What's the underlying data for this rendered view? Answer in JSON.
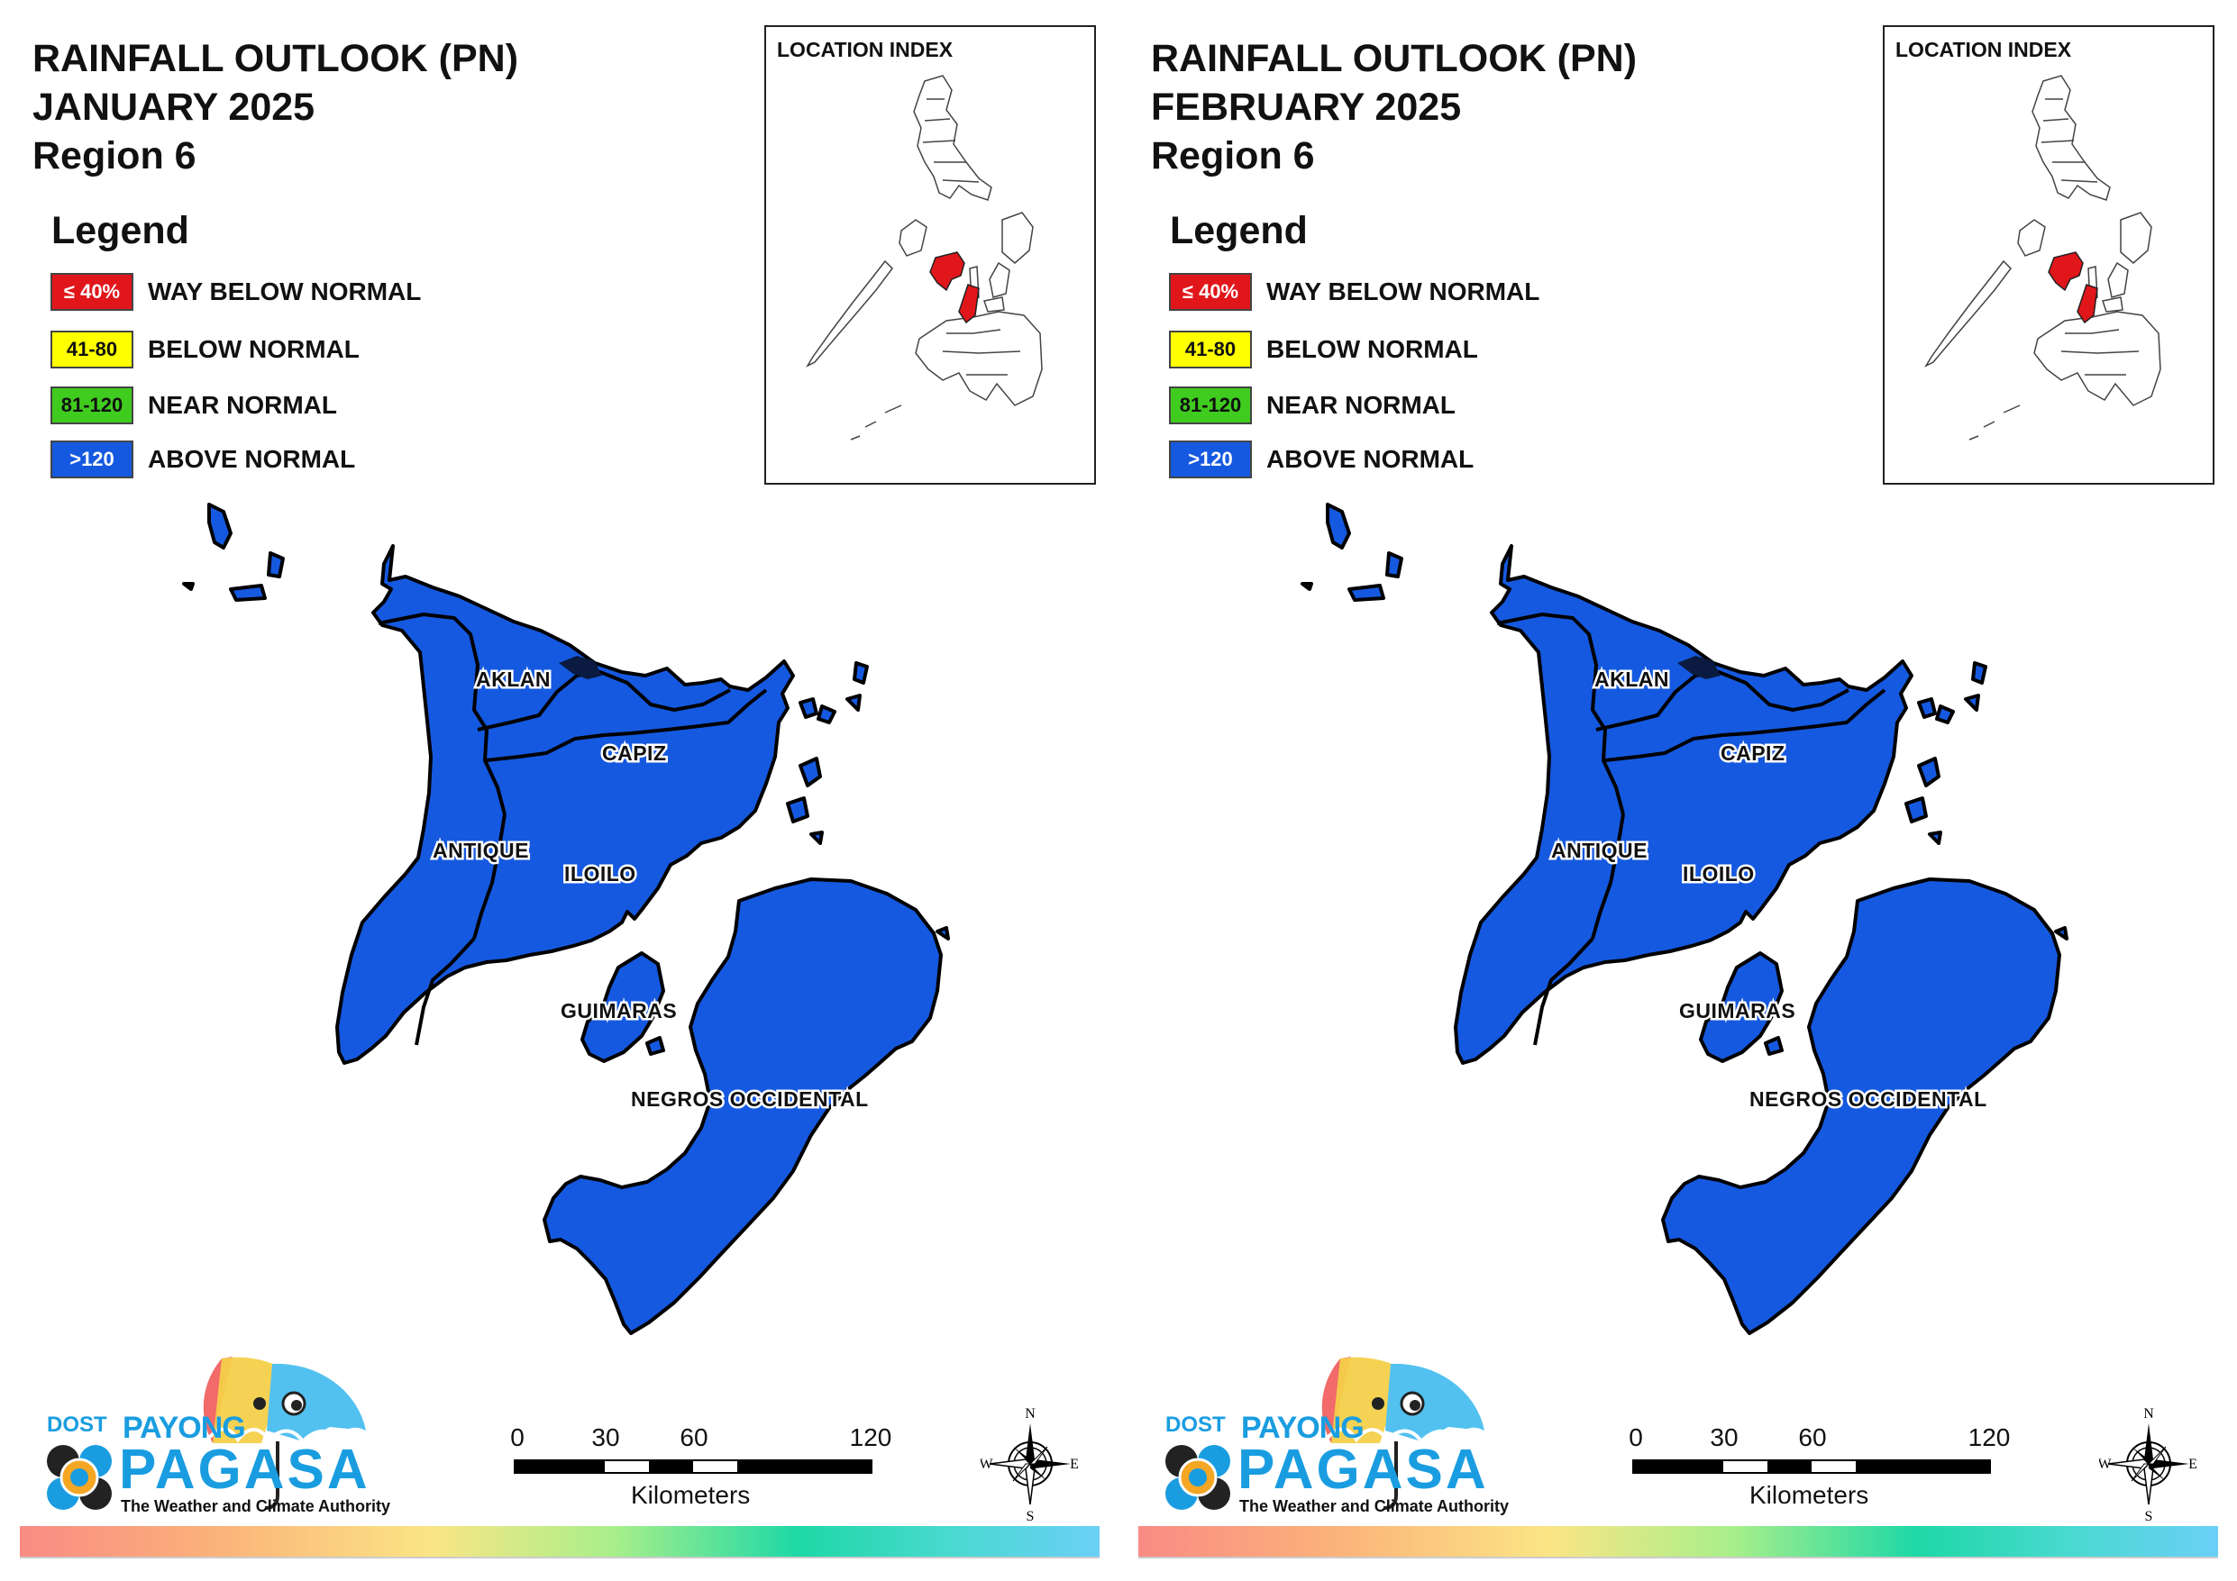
{
  "panels": [
    {
      "title": {
        "line1": "RAINFALL OUTLOOK (PN)",
        "line2": "JANUARY 2025",
        "line3": "Region 6"
      },
      "legend": {
        "heading": "Legend",
        "items": [
          {
            "swatch": "≤ 40%",
            "label": "WAY BELOW NORMAL",
            "color": "#e0161b"
          },
          {
            "swatch": "41-80",
            "label": "BELOW NORMAL",
            "color": "#ffff00"
          },
          {
            "swatch": "81-120",
            "label": "NEAR NORMAL",
            "color": "#3fcc1f"
          },
          {
            "swatch": ">120",
            "label": "ABOVE NORMAL",
            "color": "#1559e0"
          }
        ]
      },
      "location_index": {
        "title": "LOCATION INDEX"
      },
      "provinces": [
        {
          "name": "AKLAN",
          "category": "ABOVE NORMAL"
        },
        {
          "name": "CAPIZ",
          "category": "ABOVE NORMAL"
        },
        {
          "name": "ANTIQUE",
          "category": "ABOVE NORMAL"
        },
        {
          "name": "ILOILO",
          "category": "ABOVE NORMAL"
        },
        {
          "name": "GUIMARAS",
          "category": "ABOVE NORMAL"
        },
        {
          "name": "NEGROS OCCIDENTAL",
          "category": "ABOVE NORMAL"
        }
      ],
      "scale": {
        "ticks": [
          "0",
          "30",
          "60",
          "120"
        ],
        "unit": "Kilometers"
      },
      "compass": {
        "n": "N",
        "s": "S",
        "e": "E",
        "w": "W"
      },
      "logo": {
        "dost": "DOST",
        "payong": "PAYONG",
        "pagasa": "PAGASA",
        "tagline": "The Weather and Climate Authority"
      }
    },
    {
      "title": {
        "line1": "RAINFALL OUTLOOK (PN)",
        "line2": "FEBRUARY 2025",
        "line3": "Region 6"
      },
      "legend": {
        "heading": "Legend",
        "items": [
          {
            "swatch": "≤ 40%",
            "label": "WAY BELOW NORMAL",
            "color": "#e0161b"
          },
          {
            "swatch": "41-80",
            "label": "BELOW NORMAL",
            "color": "#ffff00"
          },
          {
            "swatch": "81-120",
            "label": "NEAR NORMAL",
            "color": "#3fcc1f"
          },
          {
            "swatch": ">120",
            "label": "ABOVE NORMAL",
            "color": "#1559e0"
          }
        ]
      },
      "location_index": {
        "title": "LOCATION INDEX"
      },
      "provinces": [
        {
          "name": "AKLAN",
          "category": "ABOVE NORMAL"
        },
        {
          "name": "CAPIZ",
          "category": "ABOVE NORMAL"
        },
        {
          "name": "ANTIQUE",
          "category": "ABOVE NORMAL"
        },
        {
          "name": "ILOILO",
          "category": "ABOVE NORMAL"
        },
        {
          "name": "GUIMARAS",
          "category": "ABOVE NORMAL"
        },
        {
          "name": "NEGROS OCCIDENTAL",
          "category": "ABOVE NORMAL"
        }
      ],
      "scale": {
        "ticks": [
          "0",
          "30",
          "60",
          "120"
        ],
        "unit": "Kilometers"
      },
      "compass": {
        "n": "N",
        "s": "S",
        "e": "E",
        "w": "W"
      },
      "logo": {
        "dost": "DOST",
        "payong": "PAYONG",
        "pagasa": "PAGASA",
        "tagline": "The Weather and Climate Authority"
      }
    }
  ],
  "colors": {
    "map_fill": "#1559e0",
    "highlight": "#e0161b",
    "border": "#000000"
  }
}
